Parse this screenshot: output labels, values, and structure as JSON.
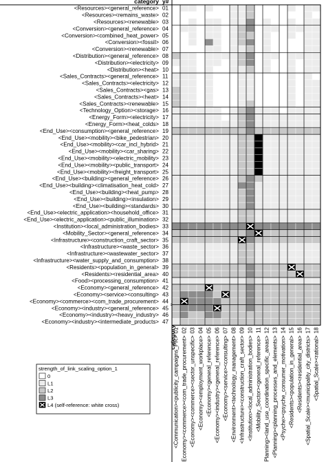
{
  "chart_data": {
    "type": "heatmap",
    "row_header": "category",
    "row_num_header": "y#",
    "col_header": "category",
    "col_num_header": "x#",
    "rows": [
      {
        "num": "01",
        "label": "<Resources><general_reference>"
      },
      {
        "num": "02",
        "label": "<Resources><remains_waste>"
      },
      {
        "num": "03",
        "label": "<Resources><renewable>"
      },
      {
        "num": "04",
        "label": "<Conversion><general_reference>"
      },
      {
        "num": "05",
        "label": "<Conversion><combined_heat_power>"
      },
      {
        "num": "06",
        "label": "<Conversion><fossil>"
      },
      {
        "num": "07",
        "label": "<Conversion><renewable>"
      },
      {
        "num": "08",
        "label": "<Distribution><general_reference>"
      },
      {
        "num": "09",
        "label": "<Distribution><electricity>"
      },
      {
        "num": "10",
        "label": "<Distribution><heat>"
      },
      {
        "num": "11",
        "label": "<Sales_Contracts><general_reference>"
      },
      {
        "num": "12",
        "label": "<Sales_Contracts><electricity>"
      },
      {
        "num": "13",
        "label": "<Sales_Contracts><gas>"
      },
      {
        "num": "14",
        "label": "<Sales_Contracts><heat>"
      },
      {
        "num": "15",
        "label": "<Sales_Contracts><renewable>"
      },
      {
        "num": "16",
        "label": "<Technology_Option><storage>"
      },
      {
        "num": "17",
        "label": "<Energy_Form><electricity>"
      },
      {
        "num": "18",
        "label": "<Energy_Form><heat_colds>"
      },
      {
        "num": "19",
        "label": "<End_Use><consumption><general_reference>"
      },
      {
        "num": "20",
        "label": "<End_Use><mobility><bike_pedestrian>"
      },
      {
        "num": "21",
        "label": "<End_Use><mobility><car_incl_hybrid>"
      },
      {
        "num": "22",
        "label": "<End_Use><mobility><car_sharing>"
      },
      {
        "num": "23",
        "label": "<End_Use><mobility><electric_mobility>"
      },
      {
        "num": "24",
        "label": "<End_Use><mobility><public_transport>"
      },
      {
        "num": "25",
        "label": "<End_Use><mobility><freight_transport>"
      },
      {
        "num": "26",
        "label": "<End_Use><building><general_reference>"
      },
      {
        "num": "27",
        "label": "<End_Use><building><climatisation_heat_cold>"
      },
      {
        "num": "28",
        "label": "<End_Use><building><heat_pump>"
      },
      {
        "num": "29",
        "label": "<End_Use><building><insulation>"
      },
      {
        "num": "30",
        "label": "<End_Use><building><standards>"
      },
      {
        "num": "31",
        "label": "<End_Use><electric_application><household_office>"
      },
      {
        "num": "32",
        "label": "<End_Use><electric_application><public_illumination>"
      },
      {
        "num": "33",
        "label": "<Institution><local_administration_bodies>"
      },
      {
        "num": "34",
        "label": "<Mobility_Sector><general_reference>"
      },
      {
        "num": "35",
        "label": "<Infrastructure><construction_craft_sector>"
      },
      {
        "num": "36",
        "label": "<Infrastructure><waste_sector>"
      },
      {
        "num": "37",
        "label": "<Infrastructure><wastewater_sector>"
      },
      {
        "num": "38",
        "label": "<Infrastructure><water_supply_and_consumption>"
      },
      {
        "num": "39",
        "label": "<Residents><population_in_general>"
      },
      {
        "num": "40",
        "label": "<Residents><residential_area>"
      },
      {
        "num": "41",
        "label": "<Food><processing_consumption>"
      },
      {
        "num": "42",
        "label": "<Economy><general_reference>"
      },
      {
        "num": "43",
        "label": "<Economy><service><consulting>"
      },
      {
        "num": "44",
        "label": "<Economy><commerce><com_trade_procurement>"
      },
      {
        "num": "45",
        "label": "<Economy><industry><general_reference>"
      },
      {
        "num": "46",
        "label": "<Economy><industry><heavy_industry>"
      },
      {
        "num": "47",
        "label": "<Economy><industry><intermediate_products>"
      }
    ],
    "columns": [
      {
        "num": "01",
        "label": "<Communication><publicity_campaigns_PR>"
      },
      {
        "num": "02",
        "label": "<Economy><commerce><com_trade_procurement>"
      },
      {
        "num": "03",
        "label": "<Economy><commerce><sector_unspecific>"
      },
      {
        "num": "04",
        "label": "<Economy><employment_workplace>"
      },
      {
        "num": "05",
        "label": "<Economy><general_reference>"
      },
      {
        "num": "06",
        "label": "<Economy><industry><general_reference>"
      },
      {
        "num": "07",
        "label": "<Economy><service><consulting>"
      },
      {
        "num": "08",
        "label": "<Environment><technology_management>"
      },
      {
        "num": "09",
        "label": "<Infrastructure><construction_craft_sector>"
      },
      {
        "num": "10",
        "label": "<Institution><local_administration_bodies>"
      },
      {
        "num": "11",
        "label": "<Mobility_Sector><general_reference>"
      },
      {
        "num": "12",
        "label": "<Planning><land_use_coordination_specific_areas>"
      },
      {
        "num": "13",
        "label": "<Planning><planning_processes_and_elements>"
      },
      {
        "num": "14",
        "label": "<Psyche><psyche_consumer_motivation>"
      },
      {
        "num": "15",
        "label": "<Residents><population_in_general>"
      },
      {
        "num": "16",
        "label": "<Residents><residential_area>"
      },
      {
        "num": "17",
        "label": "<Spatial_Scale><municipality_city_districts>"
      },
      {
        "num": "18",
        "label": "<Spatial_Scale><rational>"
      }
    ],
    "row_group_breaks_after": [
      "03",
      "07",
      "10",
      "15",
      "16",
      "18",
      "19",
      "25",
      "30",
      "32",
      "33",
      "34",
      "38",
      "40",
      "41",
      "44",
      "47"
    ],
    "col_group_breaks_after": [
      "01",
      "04",
      "07",
      "08",
      "09",
      "10",
      "11",
      "13",
      "14",
      "16"
    ],
    "self_reference": [
      {
        "row": "33",
        "col": "10"
      },
      {
        "row": "34",
        "col": "11"
      },
      {
        "row": "35",
        "col": "09"
      },
      {
        "row": "39",
        "col": "15"
      },
      {
        "row": "40",
        "col": "16"
      },
      {
        "row": "42",
        "col": "05"
      },
      {
        "row": "43",
        "col": "07"
      },
      {
        "row": "44",
        "col": "02"
      },
      {
        "row": "45",
        "col": "06"
      }
    ],
    "values": [
      [
        0,
        1,
        1,
        0,
        1,
        0,
        0,
        1,
        1,
        2,
        0,
        0,
        0,
        0,
        1,
        0,
        1,
        1
      ],
      [
        0,
        0,
        0,
        0,
        0,
        0,
        0,
        1,
        1,
        2,
        0,
        0,
        0,
        0,
        0,
        0,
        1,
        0
      ],
      [
        0,
        0,
        1,
        0,
        1,
        1,
        0,
        1,
        1,
        3,
        0,
        1,
        0,
        0,
        1,
        0,
        1,
        1
      ],
      [
        0,
        1,
        1,
        0,
        1,
        1,
        0,
        1,
        2,
        3,
        0,
        1,
        1,
        0,
        1,
        1,
        1,
        1
      ],
      [
        0,
        0,
        1,
        0,
        1,
        1,
        0,
        1,
        2,
        2,
        0,
        1,
        0,
        0,
        1,
        0,
        1,
        1
      ],
      [
        0,
        0,
        1,
        0,
        3,
        1,
        0,
        1,
        2,
        3,
        0,
        1,
        0,
        0,
        0,
        0,
        1,
        1
      ],
      [
        0,
        0,
        0,
        0,
        1,
        1,
        0,
        1,
        1,
        2,
        0,
        1,
        0,
        0,
        0,
        0,
        1,
        1
      ],
      [
        2,
        1,
        1,
        0,
        1,
        1,
        1,
        1,
        2,
        3,
        0,
        1,
        1,
        0,
        1,
        1,
        1,
        1
      ],
      [
        1,
        1,
        1,
        0,
        1,
        1,
        0,
        1,
        2,
        3,
        0,
        1,
        0,
        0,
        1,
        0,
        1,
        1
      ],
      [
        0,
        1,
        1,
        0,
        1,
        0,
        0,
        1,
        1,
        2,
        0,
        1,
        0,
        0,
        1,
        0,
        1,
        1
      ],
      [
        1,
        1,
        1,
        0,
        1,
        0,
        0,
        0,
        1,
        1,
        0,
        0,
        0,
        0,
        1,
        0,
        1,
        0
      ],
      [
        1,
        1,
        1,
        0,
        1,
        0,
        0,
        0,
        1,
        1,
        0,
        0,
        0,
        0,
        1,
        0,
        1,
        1
      ],
      [
        2,
        1,
        1,
        0,
        1,
        0,
        0,
        0,
        1,
        1,
        0,
        0,
        0,
        0,
        1,
        0,
        1,
        1
      ],
      [
        2,
        1,
        1,
        0,
        1,
        0,
        0,
        0,
        1,
        1,
        0,
        0,
        0,
        0,
        1,
        0,
        1,
        1
      ],
      [
        2,
        1,
        1,
        0,
        1,
        0,
        0,
        0,
        1,
        2,
        0,
        0,
        0,
        0,
        1,
        0,
        1,
        1
      ],
      [
        1,
        1,
        1,
        1,
        1,
        1,
        0,
        1,
        2,
        3,
        1,
        1,
        1,
        0,
        1,
        1,
        1,
        1
      ],
      [
        1,
        1,
        1,
        1,
        1,
        1,
        0,
        1,
        2,
        3,
        1,
        1,
        1,
        1,
        1,
        1,
        1,
        1
      ],
      [
        1,
        1,
        1,
        1,
        1,
        1,
        1,
        1,
        2,
        3,
        1,
        1,
        1,
        1,
        1,
        1,
        1,
        1
      ],
      [
        2,
        2,
        2,
        2,
        2,
        2,
        2,
        2,
        2,
        3,
        2,
        2,
        2,
        2,
        2,
        2,
        2,
        2
      ],
      [
        1,
        1,
        1,
        1,
        1,
        1,
        1,
        1,
        2,
        2,
        4,
        1,
        1,
        1,
        1,
        1,
        1,
        1
      ],
      [
        1,
        1,
        1,
        1,
        1,
        1,
        1,
        1,
        2,
        2,
        4,
        1,
        1,
        1,
        1,
        1,
        1,
        1
      ],
      [
        1,
        1,
        1,
        1,
        1,
        1,
        1,
        1,
        2,
        2,
        4,
        1,
        1,
        1,
        1,
        1,
        1,
        1
      ],
      [
        1,
        1,
        1,
        1,
        1,
        1,
        1,
        1,
        2,
        2,
        4,
        1,
        1,
        1,
        1,
        1,
        1,
        1
      ],
      [
        1,
        1,
        1,
        1,
        1,
        1,
        1,
        1,
        2,
        2,
        4,
        1,
        1,
        1,
        1,
        1,
        1,
        1
      ],
      [
        1,
        1,
        1,
        1,
        1,
        1,
        1,
        1,
        2,
        2,
        4,
        1,
        1,
        1,
        1,
        1,
        1,
        1
      ],
      [
        1,
        1,
        1,
        1,
        1,
        1,
        1,
        1,
        2,
        3,
        2,
        1,
        1,
        1,
        1,
        1,
        1,
        1
      ],
      [
        1,
        1,
        1,
        1,
        1,
        1,
        1,
        1,
        3,
        3,
        1,
        1,
        1,
        1,
        1,
        1,
        1,
        1
      ],
      [
        1,
        1,
        1,
        1,
        1,
        1,
        1,
        1,
        2,
        3,
        1,
        1,
        1,
        1,
        1,
        1,
        1,
        1
      ],
      [
        1,
        1,
        1,
        1,
        1,
        1,
        1,
        1,
        2,
        3,
        1,
        1,
        1,
        1,
        1,
        1,
        1,
        1
      ],
      [
        1,
        1,
        1,
        1,
        1,
        1,
        1,
        1,
        2,
        3,
        1,
        1,
        1,
        1,
        1,
        1,
        1,
        1
      ],
      [
        1,
        1,
        1,
        1,
        1,
        1,
        1,
        1,
        2,
        2,
        1,
        1,
        1,
        1,
        1,
        1,
        1,
        1
      ],
      [
        1,
        1,
        1,
        1,
        1,
        1,
        1,
        1,
        2,
        2,
        1,
        1,
        1,
        1,
        1,
        1,
        1,
        1
      ],
      [
        3,
        3,
        3,
        3,
        3,
        3,
        3,
        3,
        3,
        4,
        3,
        3,
        3,
        3,
        3,
        3,
        3,
        3
      ],
      [
        2,
        2,
        2,
        2,
        2,
        2,
        2,
        2,
        2,
        3,
        4,
        2,
        2,
        2,
        2,
        2,
        2,
        2
      ],
      [
        2,
        2,
        2,
        2,
        2,
        2,
        2,
        2,
        4,
        3,
        2,
        2,
        2,
        2,
        2,
        2,
        2,
        2
      ],
      [
        1,
        1,
        1,
        1,
        1,
        1,
        1,
        1,
        2,
        2,
        1,
        1,
        1,
        1,
        1,
        1,
        1,
        1
      ],
      [
        1,
        1,
        1,
        1,
        1,
        1,
        1,
        1,
        2,
        2,
        1,
        1,
        1,
        1,
        1,
        1,
        1,
        1
      ],
      [
        1,
        1,
        1,
        1,
        1,
        1,
        1,
        1,
        2,
        2,
        1,
        1,
        1,
        1,
        1,
        1,
        1,
        1
      ],
      [
        2,
        2,
        2,
        2,
        2,
        2,
        2,
        2,
        2,
        3,
        2,
        2,
        2,
        2,
        4,
        2,
        2,
        2
      ],
      [
        2,
        2,
        2,
        2,
        2,
        2,
        2,
        2,
        2,
        3,
        2,
        2,
        2,
        2,
        2,
        4,
        2,
        2
      ],
      [
        1,
        1,
        1,
        1,
        1,
        1,
        1,
        1,
        1,
        2,
        1,
        1,
        1,
        1,
        1,
        1,
        1,
        1
      ],
      [
        2,
        2,
        2,
        2,
        4,
        2,
        2,
        2,
        2,
        3,
        2,
        2,
        2,
        2,
        2,
        2,
        2,
        2
      ],
      [
        2,
        3,
        3,
        3,
        3,
        2,
        4,
        2,
        2,
        3,
        2,
        2,
        2,
        2,
        2,
        2,
        2,
        2
      ],
      [
        2,
        4,
        3,
        3,
        3,
        3,
        2,
        2,
        2,
        3,
        2,
        2,
        2,
        2,
        2,
        2,
        2,
        2
      ],
      [
        2,
        3,
        3,
        3,
        3,
        4,
        2,
        2,
        2,
        3,
        2,
        2,
        2,
        2,
        2,
        2,
        2,
        2
      ],
      [
        2,
        3,
        2,
        2,
        3,
        3,
        2,
        2,
        2,
        2,
        2,
        2,
        2,
        2,
        2,
        2,
        2,
        2
      ],
      [
        1,
        2,
        2,
        2,
        2,
        2,
        2,
        2,
        2,
        2,
        2,
        2,
        2,
        2,
        2,
        2,
        2,
        2
      ]
    ],
    "legend": {
      "title": "strength_of_link_scaling_option_1",
      "entries": [
        {
          "level": 0,
          "label": "0",
          "color": "#ffffff"
        },
        {
          "level": 1,
          "label": "L1",
          "color": "#ececec"
        },
        {
          "level": 2,
          "label": "L2",
          "color": "#c8c8c8"
        },
        {
          "level": 3,
          "label": "L3",
          "color": "#8c8c8c"
        },
        {
          "level": 4,
          "label": "L4 (self-reference: white cross)",
          "color": "#000000"
        }
      ]
    }
  }
}
